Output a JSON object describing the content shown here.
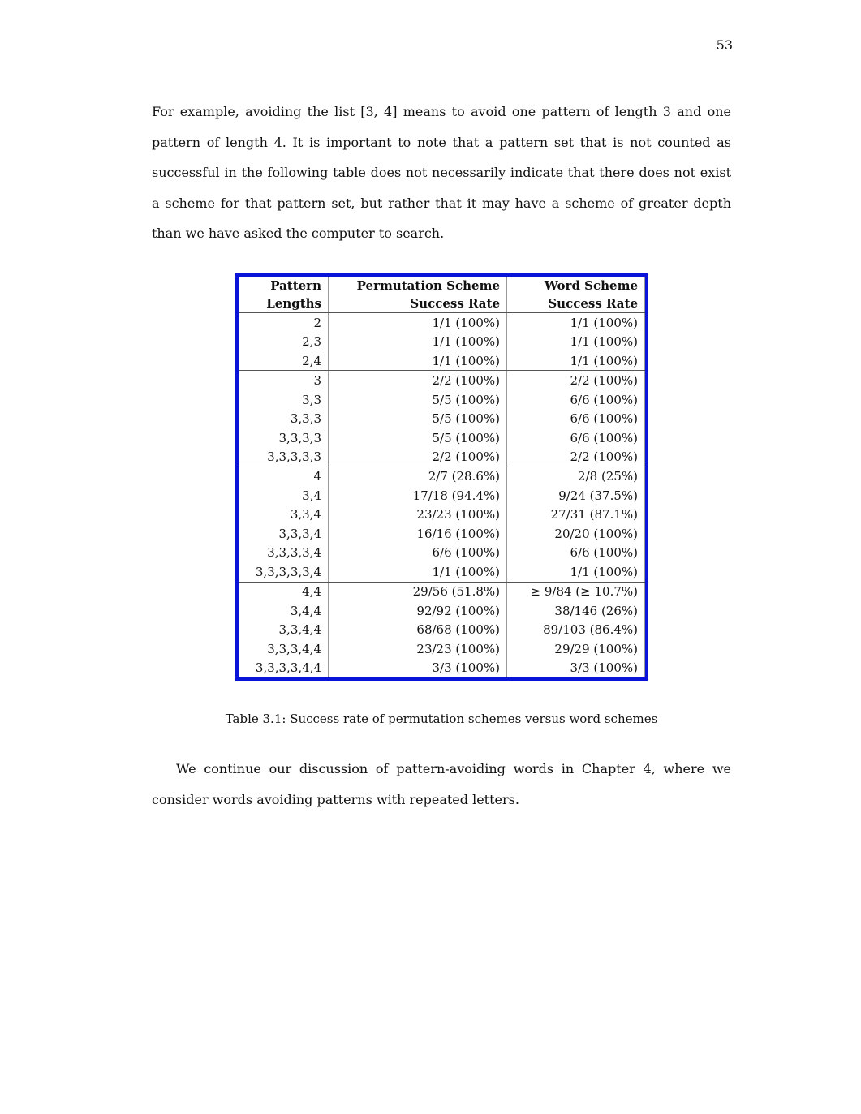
{
  "page_number": "53",
  "paragraph_1": "For example, avoiding the list [3, 4] means to avoid one pattern of length 3 and one pattern of length 4. It is important to note that a pattern set that is not counted as successful in the following table does not necessarily indicate that there does not exist a scheme for that pattern set, but rather that it may have a scheme of greater depth than we have asked the computer to search.",
  "table": {
    "headers": {
      "col1_line1": "Pattern",
      "col1_line2": "Lengths",
      "col2_line1": "Permutation Scheme",
      "col2_line2": "Success Rate",
      "col3_line1": "Word Scheme",
      "col3_line2": "Success Rate"
    },
    "groups": [
      [
        [
          "2",
          "1/1 (100%)",
          "1/1 (100%)"
        ],
        [
          "2,3",
          "1/1 (100%)",
          "1/1 (100%)"
        ],
        [
          "2,4",
          "1/1 (100%)",
          "1/1 (100%)"
        ]
      ],
      [
        [
          "3",
          "2/2 (100%)",
          "2/2 (100%)"
        ],
        [
          "3,3",
          "5/5 (100%)",
          "6/6 (100%)"
        ],
        [
          "3,3,3",
          "5/5 (100%)",
          "6/6 (100%)"
        ],
        [
          "3,3,3,3",
          "5/5 (100%)",
          "6/6 (100%)"
        ],
        [
          "3,3,3,3,3",
          "2/2 (100%)",
          "2/2 (100%)"
        ]
      ],
      [
        [
          "4",
          "2/7 (28.6%)",
          "2/8 (25%)"
        ],
        [
          "3,4",
          "17/18 (94.4%)",
          "9/24 (37.5%)"
        ],
        [
          "3,3,4",
          "23/23 (100%)",
          "27/31 (87.1%)"
        ],
        [
          "3,3,3,4",
          "16/16 (100%)",
          "20/20 (100%)"
        ],
        [
          "3,3,3,3,4",
          "6/6 (100%)",
          "6/6 (100%)"
        ],
        [
          "3,3,3,3,3,4",
          "1/1 (100%)",
          "1/1 (100%)"
        ]
      ],
      [
        [
          "4,4",
          "29/56 (51.8%)",
          "≥ 9/84 (≥ 10.7%)"
        ],
        [
          "3,4,4",
          "92/92 (100%)",
          "38/146 (26%)"
        ],
        [
          "3,3,4,4",
          "68/68 (100%)",
          "89/103 (86.4%)"
        ],
        [
          "3,3,3,4,4",
          "23/23 (100%)",
          "29/29 (100%)"
        ],
        [
          "3,3,3,3,4,4",
          "3/3 (100%)",
          "3/3 (100%)"
        ]
      ]
    ]
  },
  "caption": "Table 3.1: Success rate of permutation schemes versus word schemes",
  "paragraph_2": "We continue our discussion of pattern-avoiding words in Chapter 4, where we consider words avoiding patterns with repeated letters."
}
